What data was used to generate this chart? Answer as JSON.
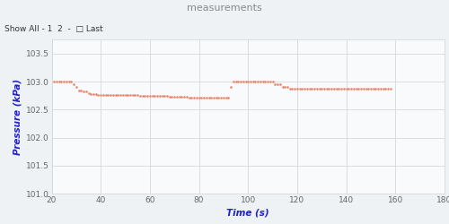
{
  "title": "measurements",
  "title_bg_color": "#72c4c8",
  "title_text_color": "#888888",
  "xlabel": "Time (s)",
  "ylabel": "Pressure (kPa)",
  "xlabel_color": "#2222cc",
  "ylabel_color": "#2222cc",
  "xlim": [
    20,
    180
  ],
  "ylim": [
    101,
    103.75
  ],
  "xticks": [
    20,
    40,
    60,
    80,
    100,
    120,
    140,
    160,
    180
  ],
  "yticks": [
    101,
    101.5,
    102,
    102.5,
    103,
    103.5
  ],
  "bg_color": "#eef2f5",
  "plot_bg_color": "#f8fafc",
  "grid_color": "#d5d8dc",
  "dot_color": "#e8856a",
  "dot_size": 3.5,
  "header_text": "Show All - 1  2  -  □ Last",
  "data_x": [
    21,
    22,
    23,
    24,
    25,
    26,
    27,
    28,
    29,
    30,
    31,
    32,
    33,
    34,
    35,
    36,
    37,
    38,
    39,
    40,
    41,
    42,
    43,
    44,
    45,
    46,
    47,
    48,
    49,
    50,
    51,
    52,
    53,
    54,
    55,
    56,
    57,
    58,
    59,
    60,
    61,
    62,
    63,
    64,
    65,
    66,
    67,
    68,
    69,
    70,
    71,
    72,
    73,
    74,
    75,
    76,
    77,
    78,
    79,
    80,
    81,
    82,
    83,
    84,
    85,
    86,
    87,
    88,
    89,
    90,
    91,
    92,
    93,
    94,
    95,
    96,
    97,
    98,
    99,
    100,
    101,
    102,
    103,
    104,
    105,
    106,
    107,
    108,
    109,
    110,
    111,
    112,
    113,
    114,
    115,
    116,
    117,
    118,
    119,
    120,
    121,
    122,
    123,
    124,
    125,
    126,
    127,
    128,
    129,
    130,
    131,
    132,
    133,
    134,
    135,
    136,
    137,
    138,
    139,
    140,
    141,
    142,
    143,
    144,
    145,
    146,
    147,
    148,
    149,
    150,
    151,
    152,
    153,
    154,
    155,
    156,
    157,
    158
  ],
  "data_y": [
    103.0,
    103.0,
    103.0,
    103.0,
    103.0,
    103.0,
    103.0,
    103.0,
    102.95,
    102.9,
    102.85,
    102.85,
    102.82,
    102.82,
    102.8,
    102.78,
    102.78,
    102.78,
    102.77,
    102.77,
    102.77,
    102.77,
    102.77,
    102.77,
    102.77,
    102.77,
    102.77,
    102.77,
    102.77,
    102.77,
    102.76,
    102.76,
    102.76,
    102.76,
    102.76,
    102.75,
    102.75,
    102.75,
    102.75,
    102.74,
    102.74,
    102.74,
    102.74,
    102.74,
    102.74,
    102.74,
    102.74,
    102.73,
    102.73,
    102.73,
    102.73,
    102.73,
    102.73,
    102.73,
    102.73,
    102.72,
    102.72,
    102.72,
    102.72,
    102.72,
    102.72,
    102.72,
    102.72,
    102.72,
    102.72,
    102.72,
    102.72,
    102.72,
    102.72,
    102.72,
    102.72,
    102.72,
    102.9,
    103.0,
    103.0,
    103.0,
    103.0,
    103.0,
    103.0,
    103.0,
    103.0,
    103.0,
    103.0,
    103.0,
    103.0,
    103.0,
    103.0,
    103.0,
    103.0,
    103.0,
    102.95,
    102.95,
    102.95,
    102.9,
    102.9,
    102.9,
    102.88,
    102.88,
    102.88,
    102.88,
    102.88,
    102.88,
    102.88,
    102.87,
    102.87,
    102.87,
    102.87,
    102.87,
    102.87,
    102.87,
    102.87,
    102.87,
    102.87,
    102.87,
    102.87,
    102.87,
    102.87,
    102.87,
    102.87,
    102.87,
    102.87,
    102.87,
    102.87,
    102.87,
    102.87,
    102.87,
    102.87,
    102.87,
    102.87,
    102.87,
    102.87,
    102.87,
    102.87,
    102.87,
    102.87,
    102.87,
    102.87,
    102.87
  ]
}
